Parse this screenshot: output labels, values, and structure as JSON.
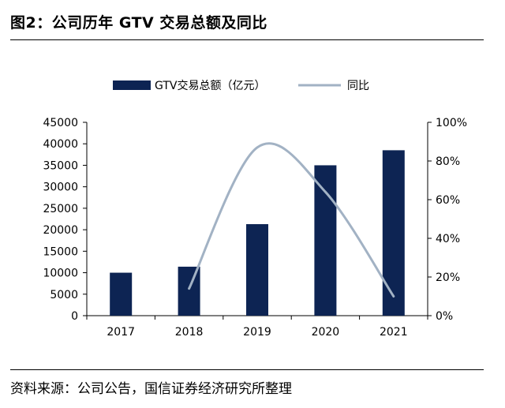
{
  "header": {
    "title": "图2：公司历年 GTV 交易总额及同比"
  },
  "footer": {
    "source": "资料来源：公司公告，国信证券经济研究所整理"
  },
  "colors": {
    "bar": "#0d2453",
    "line": "#a2b2c4",
    "axis": "#000000"
  },
  "chart_data": {
    "type": "bar",
    "title": "",
    "xlabel": "",
    "ylabel": "",
    "categories": [
      "2017",
      "2018",
      "2019",
      "2020",
      "2021"
    ],
    "series": [
      {
        "name": "GTV交易总额（亿元）",
        "type": "bar",
        "axis": "left",
        "values": [
          10000,
          11400,
          21300,
          35000,
          38500
        ]
      },
      {
        "name": "同比",
        "type": "line",
        "axis": "right",
        "smooth": true,
        "x": [
          "2018",
          "2019",
          "2020",
          "2021"
        ],
        "values": [
          14,
          87,
          64,
          10
        ]
      }
    ],
    "y_left": {
      "ylim": [
        0,
        45000
      ],
      "ticks": [
        "0",
        "5000",
        "10000",
        "15000",
        "20000",
        "25000",
        "30000",
        "35000",
        "40000",
        "45000"
      ]
    },
    "y_right": {
      "ylim": [
        0,
        100
      ],
      "ticks": [
        "0%",
        "20%",
        "40%",
        "60%",
        "80%",
        "100%"
      ]
    },
    "legend": "top-center",
    "grid": false
  }
}
